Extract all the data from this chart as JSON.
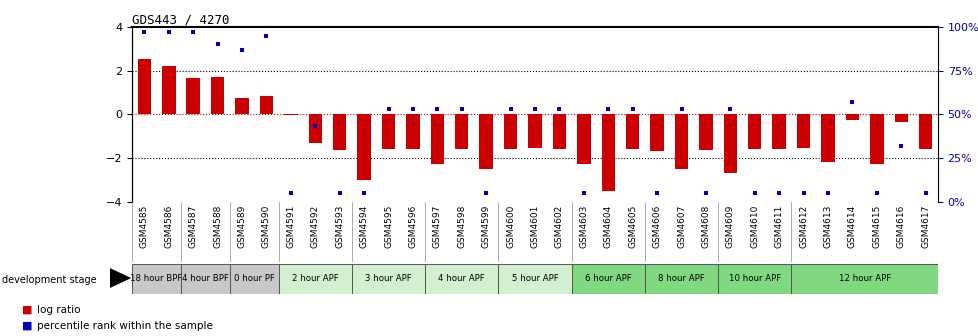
{
  "title": "GDS443 / 4270",
  "samples": [
    "GSM4585",
    "GSM4586",
    "GSM4587",
    "GSM4588",
    "GSM4589",
    "GSM4590",
    "GSM4591",
    "GSM4592",
    "GSM4593",
    "GSM4594",
    "GSM4595",
    "GSM4596",
    "GSM4597",
    "GSM4598",
    "GSM4599",
    "GSM4600",
    "GSM4601",
    "GSM4602",
    "GSM4603",
    "GSM4604",
    "GSM4605",
    "GSM4606",
    "GSM4607",
    "GSM4608",
    "GSM4609",
    "GSM4610",
    "GSM4611",
    "GSM4612",
    "GSM4613",
    "GSM4614",
    "GSM4615",
    "GSM4616",
    "GSM4617"
  ],
  "log_ratios": [
    2.55,
    2.2,
    1.65,
    1.7,
    0.75,
    0.85,
    -0.05,
    -1.3,
    -1.65,
    -3.0,
    -1.6,
    -1.6,
    -2.3,
    -1.6,
    -2.5,
    -1.6,
    -1.55,
    -1.6,
    -2.3,
    -3.5,
    -1.6,
    -1.7,
    -2.5,
    -1.65,
    -2.7,
    -1.6,
    -1.6,
    -1.55,
    -2.2,
    -0.25,
    -2.3,
    -0.35,
    -1.6
  ],
  "percentile_ranks": [
    97,
    97,
    97,
    90,
    87,
    95,
    5,
    43,
    5,
    5,
    53,
    53,
    53,
    53,
    5,
    53,
    53,
    53,
    5,
    53,
    53,
    5,
    53,
    5,
    53,
    5,
    5,
    5,
    5,
    57,
    5,
    32,
    5
  ],
  "stage_groups": [
    {
      "label": "18 hour BPF",
      "start": 0,
      "end": 2,
      "color": "#c8c8c8"
    },
    {
      "label": "4 hour BPF",
      "start": 2,
      "end": 4,
      "color": "#c8c8c8"
    },
    {
      "label": "0 hour PF",
      "start": 4,
      "end": 6,
      "color": "#c8c8c8"
    },
    {
      "label": "2 hour APF",
      "start": 6,
      "end": 9,
      "color": "#d0f0d0"
    },
    {
      "label": "3 hour APF",
      "start": 9,
      "end": 12,
      "color": "#d0f0d0"
    },
    {
      "label": "4 hour APF",
      "start": 12,
      "end": 15,
      "color": "#d0f0d0"
    },
    {
      "label": "5 hour APF",
      "start": 15,
      "end": 18,
      "color": "#d0f0d0"
    },
    {
      "label": "6 hour APF",
      "start": 18,
      "end": 21,
      "color": "#80d880"
    },
    {
      "label": "8 hour APF",
      "start": 21,
      "end": 24,
      "color": "#80d880"
    },
    {
      "label": "10 hour APF",
      "start": 24,
      "end": 27,
      "color": "#80d880"
    },
    {
      "label": "12 hour APF",
      "start": 27,
      "end": 33,
      "color": "#80d880"
    }
  ],
  "bar_color": "#cc0000",
  "dot_color": "#0000bb",
  "ylim": [
    -4,
    4
  ],
  "right_ylim": [
    0,
    100
  ],
  "right_yticks": [
    0,
    25,
    50,
    75,
    100
  ],
  "right_yticklabels": [
    "0%",
    "25%",
    "50%",
    "75%",
    "100%"
  ],
  "left_yticks": [
    -4,
    -2,
    0,
    2,
    4
  ],
  "hline_dotted": [
    -2,
    2
  ],
  "hline_dashed_red": 0,
  "background_color": "#ffffff",
  "dev_stage_label": "development stage",
  "legend_log_ratio": "log ratio",
  "legend_pct": "percentile rank within the sample"
}
